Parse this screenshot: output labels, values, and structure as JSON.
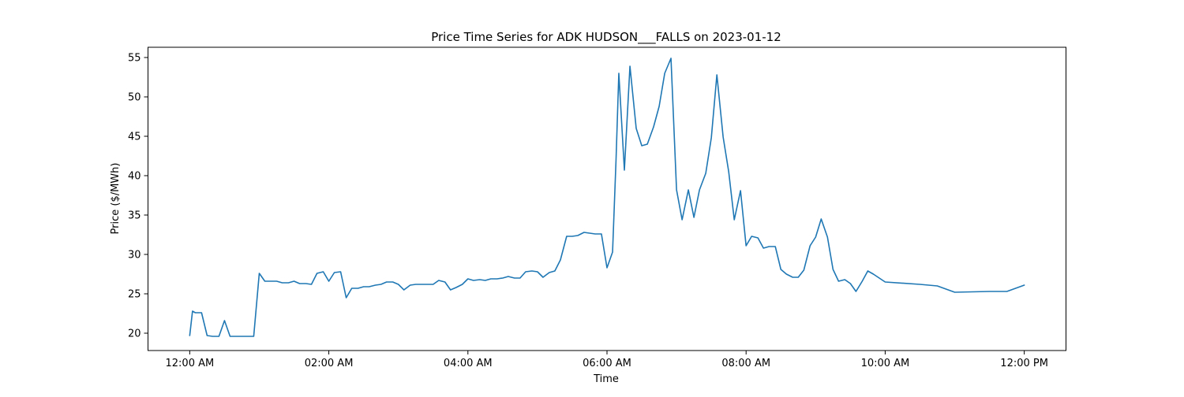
{
  "chart_data": {
    "type": "line",
    "title": "Price Time Series for ADK HUDSON___FALLS on 2023-01-12",
    "xlabel": "Time",
    "ylabel": "Price ($/MWh)",
    "x_unit": "hours since 12:00 AM",
    "xlim": [
      -0.6,
      12.6
    ],
    "ylim": [
      17.8,
      56.3
    ],
    "x_ticks": [
      {
        "value": 0,
        "label": "12:00 AM"
      },
      {
        "value": 2,
        "label": "02:00 AM"
      },
      {
        "value": 4,
        "label": "04:00 AM"
      },
      {
        "value": 6,
        "label": "06:00 AM"
      },
      {
        "value": 8,
        "label": "08:00 AM"
      },
      {
        "value": 10,
        "label": "10:00 AM"
      },
      {
        "value": 12,
        "label": "12:00 PM"
      }
    ],
    "y_ticks": [
      {
        "value": 20,
        "label": "20"
      },
      {
        "value": 25,
        "label": "25"
      },
      {
        "value": 30,
        "label": "30"
      },
      {
        "value": 35,
        "label": "35"
      },
      {
        "value": 40,
        "label": "40"
      },
      {
        "value": 45,
        "label": "45"
      },
      {
        "value": 50,
        "label": "50"
      },
      {
        "value": 55,
        "label": "55"
      }
    ],
    "grid": false,
    "legend": "none",
    "series": [
      {
        "color": "#1f77b4",
        "points": [
          [
            0.0,
            19.7
          ],
          [
            0.04,
            22.8
          ],
          [
            0.08,
            22.6
          ],
          [
            0.17,
            22.6
          ],
          [
            0.25,
            19.7
          ],
          [
            0.33,
            19.6
          ],
          [
            0.42,
            19.6
          ],
          [
            0.5,
            21.6
          ],
          [
            0.58,
            19.6
          ],
          [
            0.67,
            19.6
          ],
          [
            0.92,
            19.6
          ],
          [
            1.0,
            27.6
          ],
          [
            1.08,
            26.6
          ],
          [
            1.17,
            26.6
          ],
          [
            1.25,
            26.6
          ],
          [
            1.33,
            26.4
          ],
          [
            1.42,
            26.4
          ],
          [
            1.5,
            26.6
          ],
          [
            1.58,
            26.3
          ],
          [
            1.67,
            26.3
          ],
          [
            1.75,
            26.2
          ],
          [
            1.83,
            27.6
          ],
          [
            1.92,
            27.8
          ],
          [
            2.0,
            26.6
          ],
          [
            2.08,
            27.7
          ],
          [
            2.17,
            27.8
          ],
          [
            2.25,
            24.5
          ],
          [
            2.33,
            25.7
          ],
          [
            2.42,
            25.7
          ],
          [
            2.5,
            25.9
          ],
          [
            2.58,
            25.9
          ],
          [
            2.67,
            26.1
          ],
          [
            2.75,
            26.2
          ],
          [
            2.83,
            26.5
          ],
          [
            2.92,
            26.5
          ],
          [
            3.0,
            26.2
          ],
          [
            3.08,
            25.5
          ],
          [
            3.17,
            26.1
          ],
          [
            3.25,
            26.2
          ],
          [
            3.33,
            26.2
          ],
          [
            3.42,
            26.2
          ],
          [
            3.5,
            26.2
          ],
          [
            3.58,
            26.7
          ],
          [
            3.67,
            26.5
          ],
          [
            3.75,
            25.5
          ],
          [
            3.83,
            25.8
          ],
          [
            3.92,
            26.2
          ],
          [
            4.0,
            26.9
          ],
          [
            4.08,
            26.7
          ],
          [
            4.17,
            26.8
          ],
          [
            4.25,
            26.7
          ],
          [
            4.33,
            26.9
          ],
          [
            4.42,
            26.9
          ],
          [
            4.5,
            27.0
          ],
          [
            4.58,
            27.2
          ],
          [
            4.67,
            27.0
          ],
          [
            4.75,
            27.0
          ],
          [
            4.83,
            27.8
          ],
          [
            4.92,
            27.9
          ],
          [
            5.0,
            27.8
          ],
          [
            5.08,
            27.1
          ],
          [
            5.17,
            27.7
          ],
          [
            5.25,
            27.9
          ],
          [
            5.33,
            29.3
          ],
          [
            5.42,
            32.3
          ],
          [
            5.5,
            32.3
          ],
          [
            5.58,
            32.4
          ],
          [
            5.67,
            32.8
          ],
          [
            5.75,
            32.7
          ],
          [
            5.83,
            32.6
          ],
          [
            5.92,
            32.6
          ],
          [
            6.0,
            28.3
          ],
          [
            6.08,
            30.3
          ],
          [
            6.13,
            42.0
          ],
          [
            6.17,
            53.0
          ],
          [
            6.25,
            40.7
          ],
          [
            6.33,
            53.9
          ],
          [
            6.42,
            46.0
          ],
          [
            6.5,
            43.8
          ],
          [
            6.58,
            44.0
          ],
          [
            6.67,
            46.2
          ],
          [
            6.75,
            48.8
          ],
          [
            6.83,
            53.0
          ],
          [
            6.92,
            54.9
          ],
          [
            7.0,
            38.2
          ],
          [
            7.08,
            34.4
          ],
          [
            7.17,
            38.2
          ],
          [
            7.25,
            34.7
          ],
          [
            7.33,
            38.2
          ],
          [
            7.42,
            40.3
          ],
          [
            7.5,
            44.8
          ],
          [
            7.58,
            52.8
          ],
          [
            7.67,
            44.9
          ],
          [
            7.75,
            40.5
          ],
          [
            7.83,
            34.4
          ],
          [
            7.92,
            38.1
          ],
          [
            8.0,
            31.1
          ],
          [
            8.08,
            32.3
          ],
          [
            8.17,
            32.1
          ],
          [
            8.25,
            30.8
          ],
          [
            8.33,
            31.0
          ],
          [
            8.42,
            31.0
          ],
          [
            8.5,
            28.1
          ],
          [
            8.58,
            27.5
          ],
          [
            8.67,
            27.1
          ],
          [
            8.75,
            27.1
          ],
          [
            8.83,
            28.0
          ],
          [
            8.92,
            31.1
          ],
          [
            9.0,
            32.2
          ],
          [
            9.08,
            34.5
          ],
          [
            9.17,
            32.2
          ],
          [
            9.25,
            28.1
          ],
          [
            9.33,
            26.6
          ],
          [
            9.42,
            26.8
          ],
          [
            9.5,
            26.3
          ],
          [
            9.58,
            25.3
          ],
          [
            9.67,
            26.6
          ],
          [
            9.75,
            27.9
          ],
          [
            9.83,
            27.5
          ],
          [
            10.0,
            26.5
          ],
          [
            10.5,
            26.2
          ],
          [
            10.75,
            26.0
          ],
          [
            11.0,
            25.2
          ],
          [
            11.5,
            25.3
          ],
          [
            11.75,
            25.3
          ],
          [
            12.0,
            26.1
          ]
        ]
      }
    ]
  }
}
